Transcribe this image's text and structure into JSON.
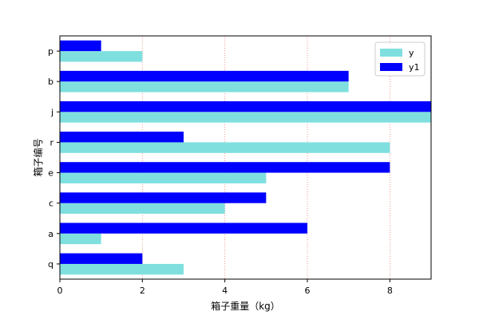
{
  "chart_data": {
    "type": "bar",
    "orientation": "horizontal",
    "categories": [
      "q",
      "a",
      "c",
      "e",
      "r",
      "j",
      "b",
      "p"
    ],
    "series": [
      {
        "name": "y",
        "values": [
          3,
          1,
          4,
          5,
          8,
          9,
          7,
          2
        ],
        "color": "#7fdfdf"
      },
      {
        "name": "y1",
        "values": [
          2,
          6,
          5,
          8,
          3,
          9,
          7,
          1
        ],
        "color": "#0000ff"
      }
    ],
    "title": "",
    "xlabel": "箱子重量（kg）",
    "ylabel": "箱子编号",
    "xlim": [
      0,
      9
    ],
    "xticks": [
      "0",
      "2",
      "4",
      "6",
      "8"
    ],
    "grid": {
      "x": true,
      "y": false,
      "color": "#f08080",
      "style": "dotted"
    },
    "legend": "top-right"
  }
}
